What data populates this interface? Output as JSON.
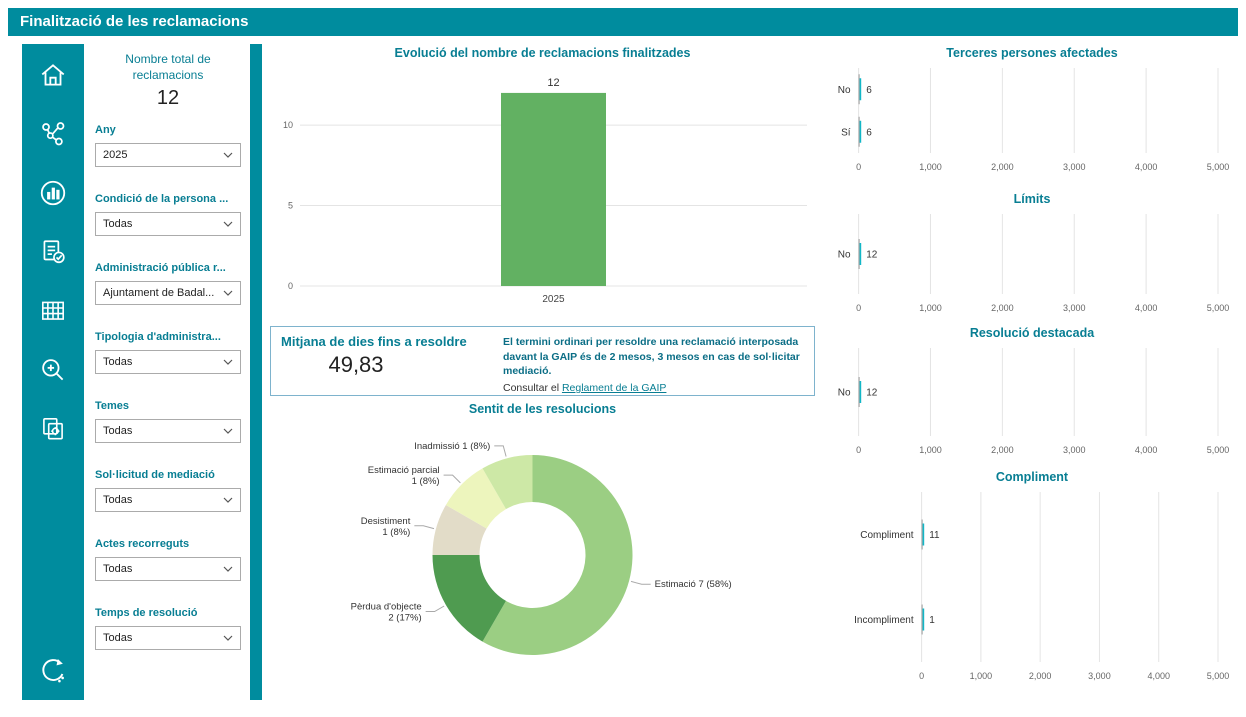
{
  "header": {
    "title": "Finalització de les reclamacions"
  },
  "sidebar": {
    "icons": [
      "home",
      "network",
      "donut-chart",
      "document-check",
      "grid",
      "zoom-in",
      "pages-settings",
      "refresh"
    ]
  },
  "filters": {
    "total_label": "Nombre total de reclamacions",
    "total_value": "12",
    "fields": [
      {
        "label": "Any",
        "value": "2025"
      },
      {
        "label": "Condició de la persona ...",
        "value": "Todas"
      },
      {
        "label": "Administració pública r...",
        "value": "Ajuntament de Badal..."
      },
      {
        "label": "Tipologia d'administra...",
        "value": "Todas"
      },
      {
        "label": "Temes",
        "value": "Todas"
      },
      {
        "label": "Sol·licitud de mediació",
        "value": "Todas"
      },
      {
        "label": "Actes recorreguts",
        "value": "Todas"
      },
      {
        "label": "Temps de resolució",
        "value": "Todas"
      }
    ]
  },
  "kpi": {
    "title": "Mitjana de dies fins a resoldre",
    "value": "49,83",
    "note": "El termini ordinari per resoldre una reclamació interposada davant la GAIP és de 2 mesos, 3 mesos en cas de sol·licitar mediació.",
    "link_prefix": "Consultar el ",
    "link_text": "Reglament de la GAIP"
  },
  "colors": {
    "teal": "#008C9E",
    "title_text": "#087E93",
    "bar_green": "#62B162",
    "tiny_bar": "#12B7C7",
    "grid": "#E4E4E4",
    "link": "#087E93"
  },
  "chart_data": [
    {
      "id": "evolucio",
      "type": "bar",
      "title": "Evolució del nombre de reclamacions finalitzades",
      "categories": [
        "2025"
      ],
      "values": [
        12
      ],
      "ylim": [
        0,
        13.3
      ],
      "yticks": [
        0,
        5,
        10
      ],
      "grid": true
    },
    {
      "id": "sentit",
      "type": "pie",
      "title": "Sentit de les resolucions",
      "slices": [
        {
          "label": "Estimació",
          "value": 7,
          "pct": "58%",
          "color": "#9BCE83"
        },
        {
          "label": "Pèrdua d'objecte",
          "value": 2,
          "pct": "17%",
          "color": "#4F9B50"
        },
        {
          "label": "Desistiment",
          "value": 1,
          "pct": "8%",
          "color": "#E2DCC8"
        },
        {
          "label": "Estimació parcial",
          "value": 1,
          "pct": "8%",
          "color": "#EDF5BD"
        },
        {
          "label": "Inadmissió",
          "value": 1,
          "pct": "8%",
          "color": "#CDE8A6"
        }
      ]
    },
    {
      "id": "terceres",
      "type": "hbar",
      "title": "Terceres persones afectades",
      "categories": [
        "No",
        "Sí"
      ],
      "values": [
        6,
        6
      ],
      "xlim": [
        0,
        5000
      ],
      "xticks": [
        0,
        1000,
        2000,
        3000,
        4000,
        5000
      ],
      "grid": true
    },
    {
      "id": "limits",
      "type": "hbar",
      "title": "Límits",
      "categories": [
        "No"
      ],
      "values": [
        12
      ],
      "xlim": [
        0,
        5000
      ],
      "xticks": [
        0,
        1000,
        2000,
        3000,
        4000,
        5000
      ],
      "grid": true
    },
    {
      "id": "resolucio",
      "type": "hbar",
      "title": "Resolució destacada",
      "categories": [
        "No"
      ],
      "values": [
        12
      ],
      "xlim": [
        0,
        5000
      ],
      "xticks": [
        0,
        1000,
        2000,
        3000,
        4000,
        5000
      ],
      "grid": true
    },
    {
      "id": "compliment",
      "type": "hbar",
      "title": "Compliment",
      "categories": [
        "Compliment",
        "Incompliment"
      ],
      "values": [
        11,
        1
      ],
      "xlim": [
        0,
        5000
      ],
      "xticks": [
        0,
        1000,
        2000,
        3000,
        4000,
        5000
      ],
      "grid": true
    }
  ]
}
